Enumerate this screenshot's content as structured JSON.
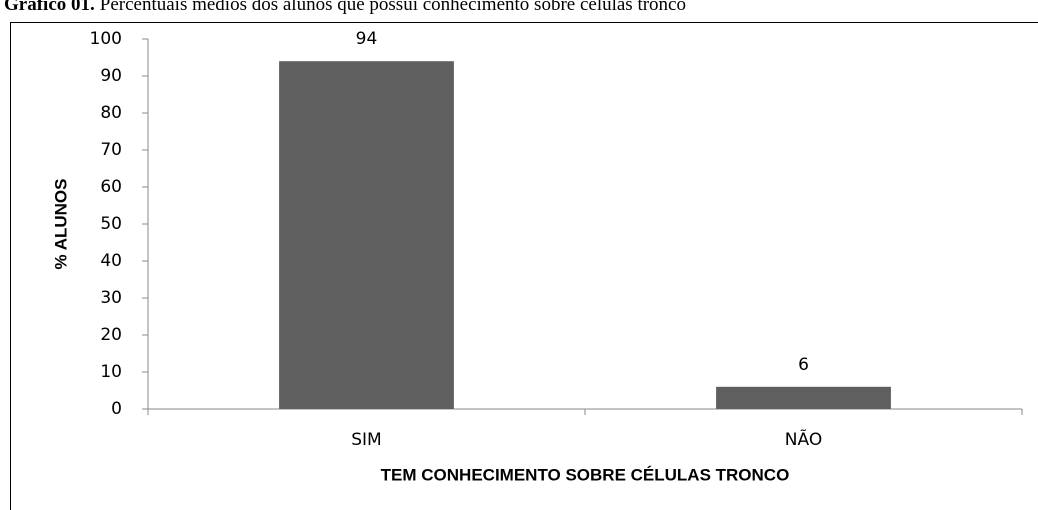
{
  "chart_data": {
    "type": "bar",
    "caption_label": "Gráfico 01.",
    "title": "Percentuais médios dos alunos que possui conhecimento sobre células tronco",
    "ylabel": "% ALUNOS",
    "xlabel": "TEM CONHECIMENTO SOBRE CÉLULAS TRONCO",
    "categories": [
      "SIM",
      "NÃO"
    ],
    "values": [
      94,
      6
    ],
    "color": "#5f5f5f",
    "ylim": [
      0,
      100
    ],
    "yticks": [
      0,
      10,
      20,
      30,
      40,
      50,
      60,
      70,
      80,
      90,
      100
    ],
    "grid": false
  }
}
